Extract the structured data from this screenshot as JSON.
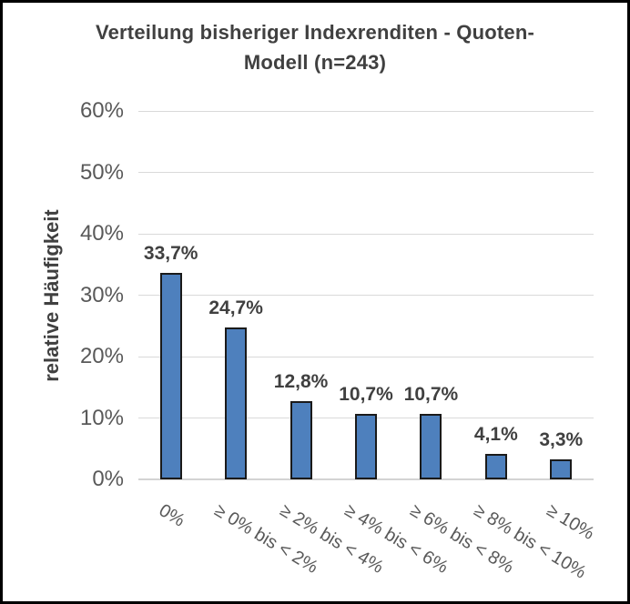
{
  "chart_data": {
    "type": "bar",
    "title": "Verteilung bisheriger Indexrenditen - Quoten-Modell (n=243)",
    "title_lines": [
      "Verteilung bisheriger Indexrenditen - Quoten-",
      "Modell (n=243)"
    ],
    "ylabel": "relative Häufigkeit",
    "xlabel": "",
    "categories": [
      "0%",
      "≥ 0% bis < 2%",
      "≥ 2% bis < 4%",
      "≥ 4% bis < 6%",
      "≥ 6% bis < 8%",
      "≥ 8% bis < 10%",
      "≥ 10%"
    ],
    "values": [
      33.7,
      24.7,
      12.8,
      10.7,
      10.7,
      4.1,
      3.3
    ],
    "value_labels": [
      "33,7%",
      "24,7%",
      "12,8%",
      "10,7%",
      "10,7%",
      "4,1%",
      "3,3%"
    ],
    "yticks": {
      "values": [
        0,
        10,
        20,
        30,
        40,
        50,
        60
      ],
      "labels": [
        "0%",
        "10%",
        "20%",
        "30%",
        "40%",
        "50%",
        "60%"
      ]
    },
    "ylim": [
      0,
      60
    ],
    "grid": true,
    "legend_position": "none",
    "colors": {
      "bar_fill": "#4E80BD",
      "bar_border": "#1A1A1A",
      "gridline": "#D9D9D9",
      "axis_line": "#D3D3D3",
      "tick_text": "#595959",
      "xcat_text": "#595959",
      "data_label_text": "#404040",
      "title_text": "#404040",
      "ylabel_text": "#404040",
      "frame_border": "#000000",
      "background": "#FFFFFF"
    }
  }
}
